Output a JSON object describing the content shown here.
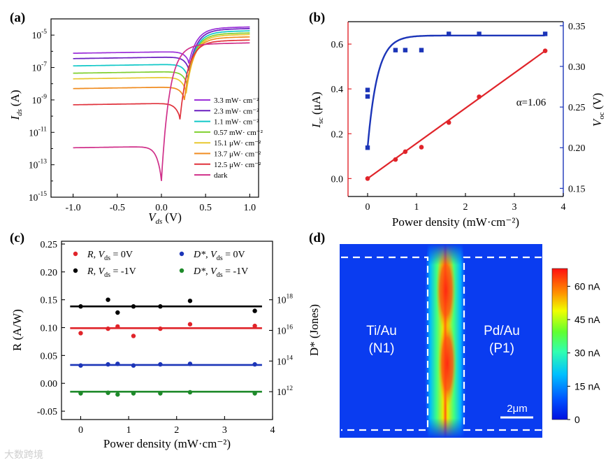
{
  "watermark": "大数跨境",
  "chart_data": [
    {
      "panel": "(a)",
      "type": "line",
      "xlabel_main": "V",
      "xlabel_sub": "ds",
      "xlabel_unit": "(V)",
      "ylabel_main": "I",
      "ylabel_sub": "ds",
      "ylabel_unit": "(A)",
      "xlim": [
        -1.25,
        1.1
      ],
      "yscale": "log",
      "ylim_exp": [
        -15,
        -4
      ],
      "xticks": [
        -1.0,
        -0.5,
        0.0,
        0.5,
        1.0
      ],
      "xtick_labels": [
        "-1.0",
        "-0.5",
        "0.0",
        "0.5",
        "1.0"
      ],
      "ytick_exps": [
        -15,
        -13,
        -11,
        -9,
        -7,
        -5
      ],
      "series": [
        {
          "label": "3.3 mW· cm⁻²",
          "color": "#9b30d9",
          "neg": -6.12,
          "min_x": 0.31,
          "min_y": -6.75,
          "pos": -4.58
        },
        {
          "label": "2.3 mW· cm⁻²",
          "color": "#6a1fc0",
          "neg": -6.45,
          "min_x": 0.31,
          "min_y": -7.2,
          "pos": -4.68
        },
        {
          "label": "1.1 mW· cm⁻²",
          "color": "#10c8c8",
          "neg": -6.9,
          "min_x": 0.3,
          "min_y": -7.7,
          "pos": -4.82
        },
        {
          "label": "0.57 mW· cm⁻²",
          "color": "#80d030",
          "neg": -7.35,
          "min_x": 0.29,
          "min_y": -8.1,
          "pos": -4.95
        },
        {
          "label": "15.1 μW· cm⁻²",
          "color": "#e8c830",
          "neg": -7.7,
          "min_x": 0.28,
          "min_y": -8.6,
          "pos": -5.05
        },
        {
          "label": "13.7 μW· cm⁻²",
          "color": "#f08c20",
          "neg": -8.3,
          "min_x": 0.26,
          "min_y": -9.0,
          "pos": -5.2
        },
        {
          "label": "12.5 μW· cm⁻²",
          "color": "#e0323c",
          "neg": -9.3,
          "min_x": 0.21,
          "min_y": -10.2,
          "pos": -5.4
        },
        {
          "label": "dark",
          "color": "#d0308a",
          "neg": -11.95,
          "min_x": 0.0,
          "min_y": -14.0,
          "pos": -5.6
        }
      ]
    },
    {
      "panel": "(b)",
      "type": "scatter",
      "xlabel": "Power density (mW·cm⁻²)",
      "ylabel_left_main": "I",
      "ylabel_left_sub": "sc",
      "ylabel_left_unit": "(μA)",
      "ylabel_right_main": "V",
      "ylabel_right_sub": "oc",
      "ylabel_right_unit": "(V)",
      "xlim": [
        -0.4,
        4
      ],
      "ylim_left": [
        -0.08,
        0.7
      ],
      "ylim_right": [
        0.14,
        0.355
      ],
      "xticks": [
        0,
        1,
        2,
        3,
        4
      ],
      "yticks_left": [
        0.0,
        0.2,
        0.4,
        0.6
      ],
      "ytick_labels_left": [
        "0.0",
        "0.2",
        "0.4",
        "0.6"
      ],
      "yticks_right": [
        0.15,
        0.2,
        0.25,
        0.3,
        0.35
      ],
      "ytick_labels_right": [
        "0.15",
        "0.20",
        "0.25",
        "0.30",
        "0.35"
      ],
      "annotation": "α=1.06",
      "isc": {
        "color": "#e0242a",
        "x": [
          0,
          0.57,
          0.77,
          1.1,
          1.66,
          2.28,
          3.63
        ],
        "y": [
          0.0,
          0.085,
          0.12,
          0.14,
          0.25,
          0.365,
          0.57
        ]
      },
      "voc": {
        "color": "#1c35b8",
        "x": [
          0,
          0,
          0,
          0.57,
          0.77,
          1.1,
          1.66,
          2.28,
          3.63
        ],
        "y": [
          0.2,
          0.263,
          0.271,
          0.32,
          0.32,
          0.32,
          0.34,
          0.34,
          0.34
        ]
      }
    },
    {
      "panel": "(c)",
      "type": "scatter",
      "xlabel": "Power density (mW·cm⁻²)",
      "ylabel_left": "R (A/W)",
      "ylabel_right": "D* (Jones)",
      "xlim": [
        -0.4,
        4
      ],
      "ylim_left": [
        -0.065,
        0.255
      ],
      "xticks": [
        0,
        1,
        2,
        3,
        4
      ],
      "yticks_left": [
        -0.05,
        0.0,
        0.05,
        0.1,
        0.15,
        0.2,
        0.25
      ],
      "ytick_labels_left": [
        "-0.05",
        "0.00",
        "0.05",
        "0.10",
        "0.15",
        "0.20",
        "0.25"
      ],
      "right_ticks": [
        {
          "y": -0.015,
          "exp": "12"
        },
        {
          "y": 0.04,
          "exp": "14"
        },
        {
          "y": 0.095,
          "exp": "16"
        },
        {
          "y": 0.15,
          "exp": "18"
        }
      ],
      "legend": [
        {
          "sym": "R",
          "cond": "0V",
          "color": "#e0242a"
        },
        {
          "sym": "R",
          "cond": "-1V",
          "color": "#000000"
        },
        {
          "sym": "D*",
          "cond": "0V",
          "color": "#1c35b8"
        },
        {
          "sym": "D*",
          "cond": "-1V",
          "color": "#1e8a2a"
        }
      ],
      "x": [
        0,
        0.57,
        0.77,
        1.1,
        1.66,
        2.28,
        3.63
      ],
      "series": [
        {
          "name": "R, Vds = 0V",
          "color": "#e0242a",
          "y": [
            0.09,
            0.098,
            0.102,
            0.085,
            0.098,
            0.106,
            0.103
          ],
          "fit": 0.099
        },
        {
          "name": "R, Vds = -1V",
          "color": "#000000",
          "y": [
            0.138,
            0.15,
            0.127,
            0.138,
            0.138,
            0.148,
            0.13
          ],
          "fit": 0.138
        },
        {
          "name": "D*, Vds = 0V",
          "color": "#1c35b8",
          "y": [
            0.032,
            0.034,
            0.035,
            0.032,
            0.034,
            0.035,
            0.034
          ],
          "fit": 0.033
        },
        {
          "name": "D*, Vds = -1V",
          "color": "#1e8a2a",
          "y": [
            -0.018,
            -0.017,
            -0.02,
            -0.018,
            -0.018,
            -0.016,
            -0.018
          ],
          "fit": -0.015
        }
      ]
    },
    {
      "panel": "(d)",
      "type": "heatmap",
      "left_label_1": "Ti/Au",
      "left_label_2": "(N1)",
      "right_label_1": "Pd/Au",
      "right_label_2": "(P1)",
      "scalebar": "2μm",
      "colorbar_ticks": [
        {
          "v": 0,
          "label": "0"
        },
        {
          "v": 15,
          "label": "15 nA"
        },
        {
          "v": 30,
          "label": "30 nA"
        },
        {
          "v": 45,
          "label": "45 nA"
        },
        {
          "v": 60,
          "label": "60 nA"
        }
      ],
      "colorbar_max": 68
    }
  ]
}
